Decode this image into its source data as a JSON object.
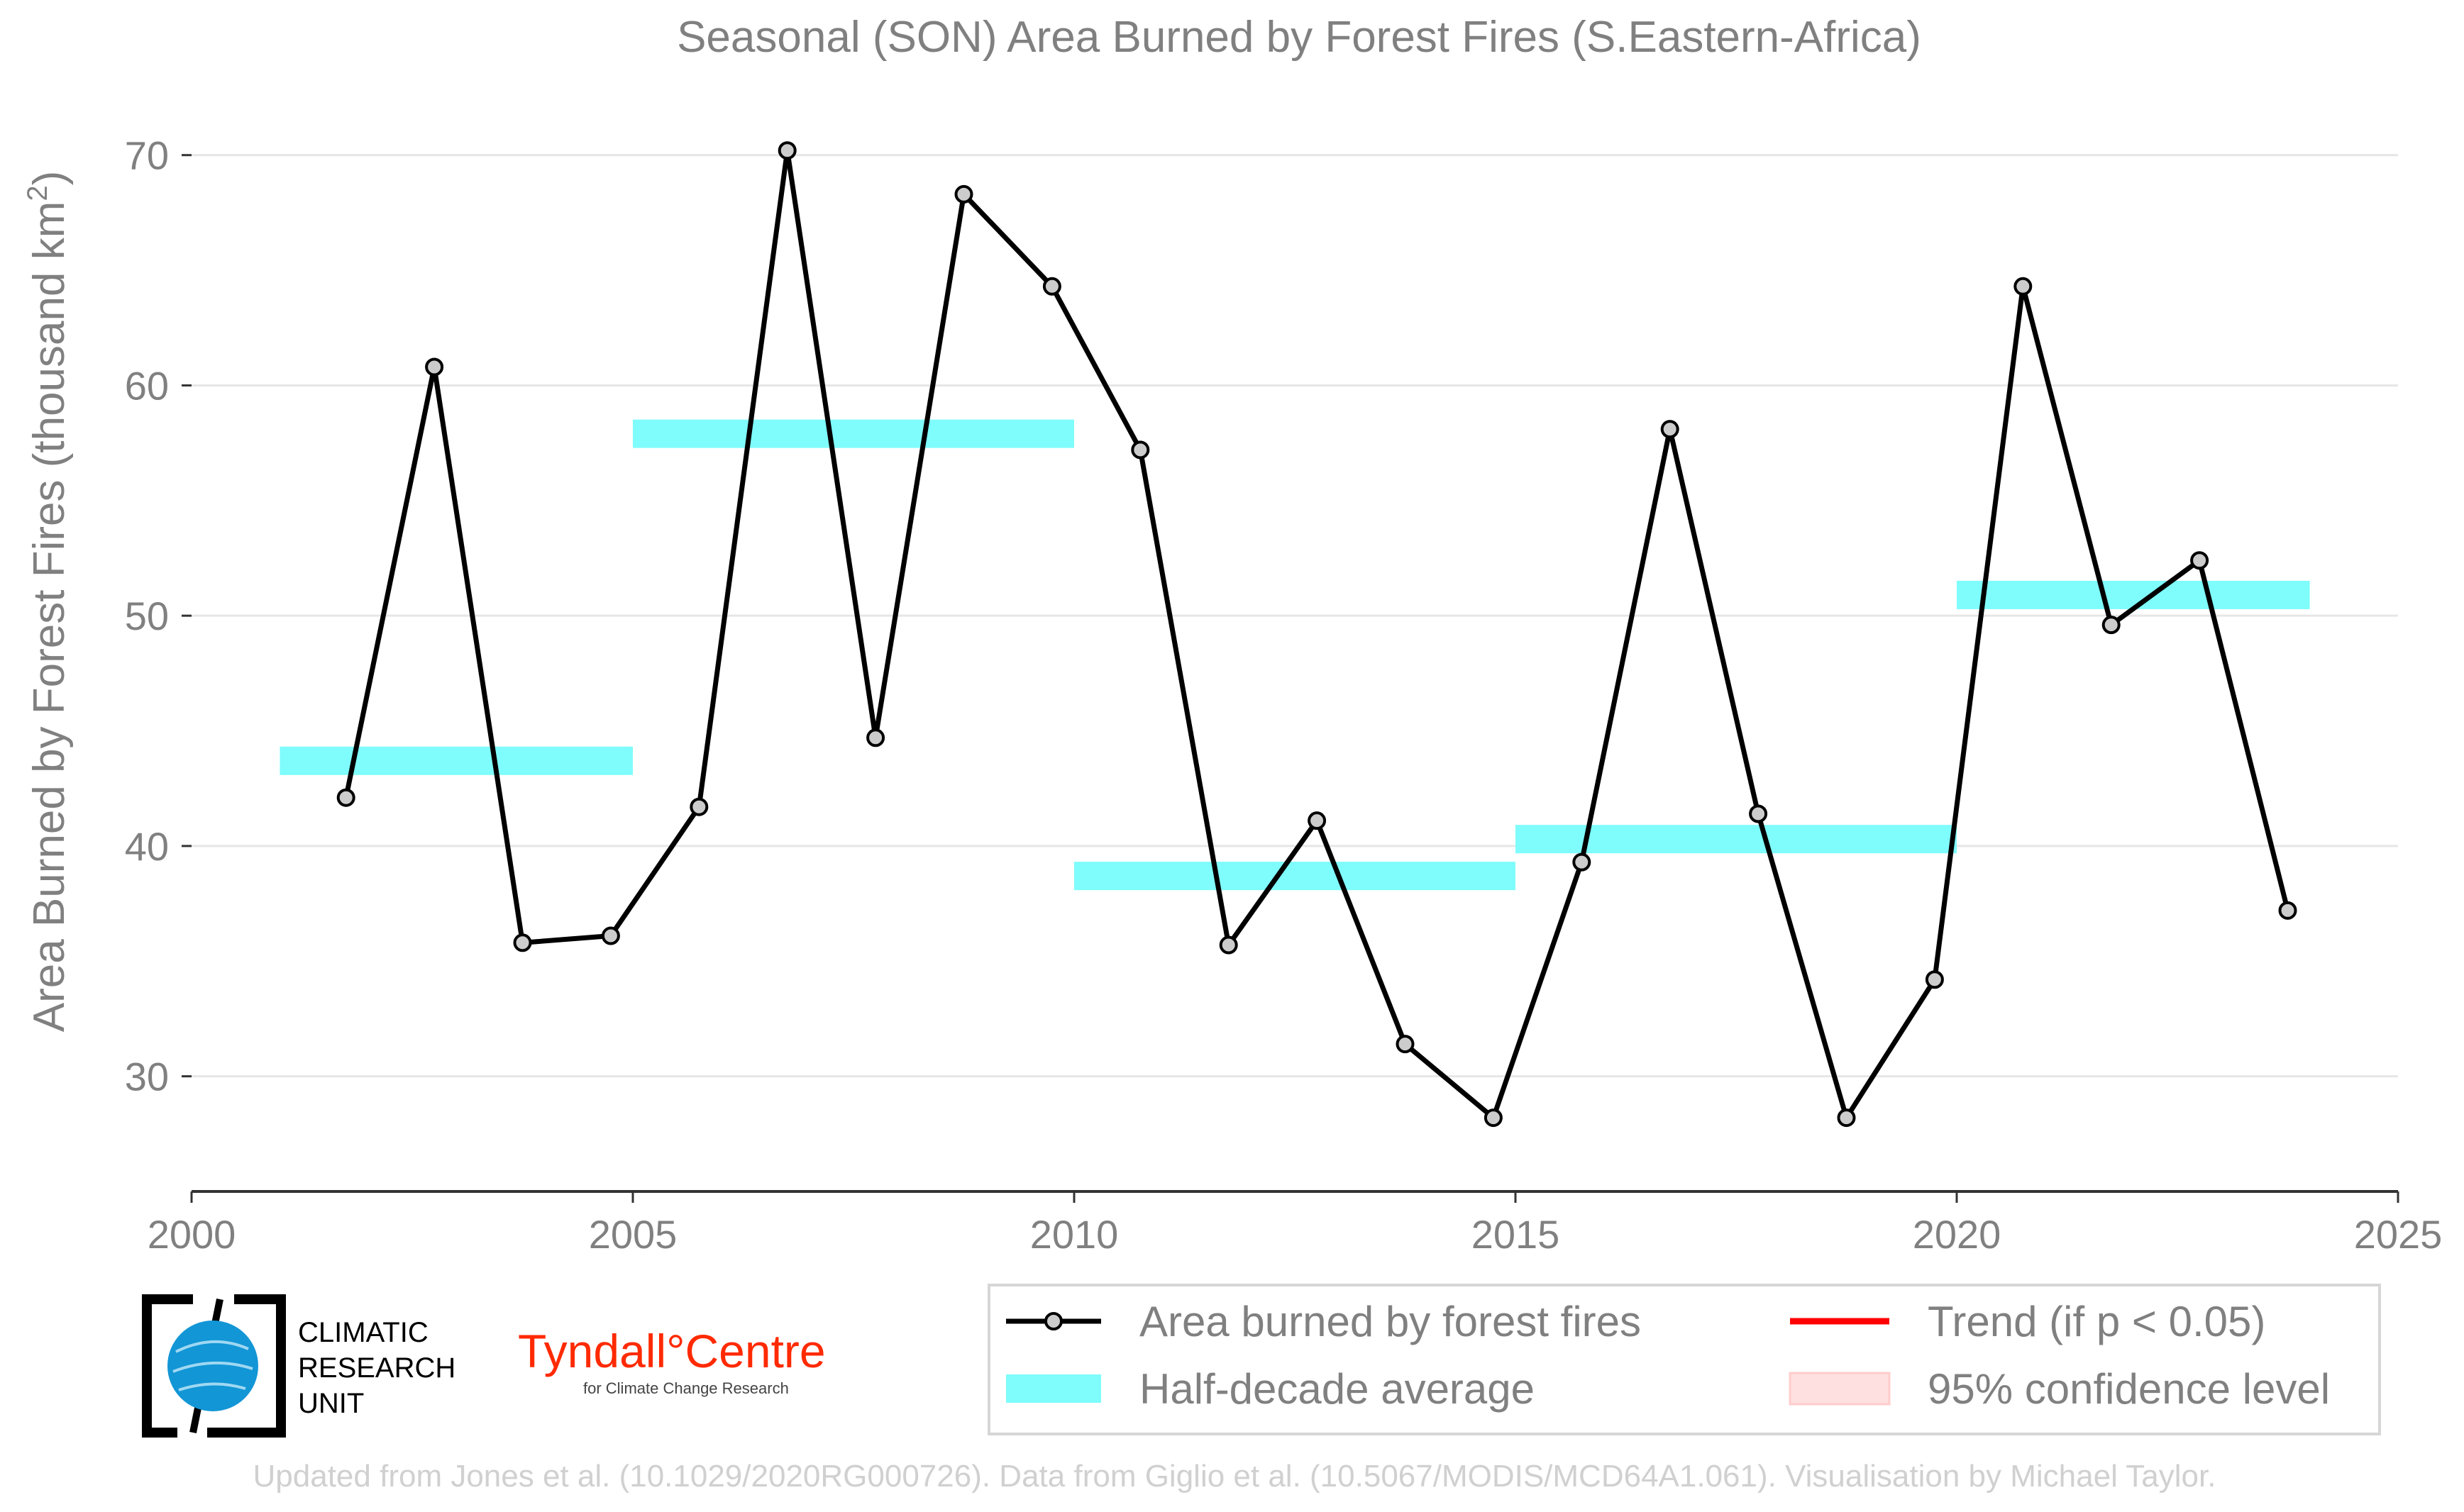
{
  "chart_data": {
    "type": "line",
    "title": "Seasonal (SON) Area Burned by Forest Fires (S.Eastern-Africa)",
    "ylabel": "Area Burned by Forest Fires (thousand km²)",
    "xlabel": "",
    "xlim": [
      2000,
      2025
    ],
    "ylim": [
      25,
      71.5
    ],
    "x_ticks": [
      2000,
      2005,
      2010,
      2015,
      2020,
      2025
    ],
    "y_ticks": [
      30,
      40,
      50,
      60,
      70
    ],
    "grid": "horizontal",
    "series": [
      {
        "name": "Area burned by forest fires",
        "color": "#000000",
        "x": [
          2001.75,
          2002.75,
          2003.75,
          2004.75,
          2005.75,
          2006.75,
          2007.75,
          2008.75,
          2009.75,
          2010.75,
          2011.75,
          2012.75,
          2013.75,
          2014.75,
          2015.75,
          2016.75,
          2017.75,
          2018.75,
          2019.75,
          2020.75,
          2021.75,
          2022.75,
          2023.75
        ],
        "values": [
          42.1,
          60.8,
          35.8,
          36.1,
          41.7,
          70.2,
          44.7,
          68.3,
          64.3,
          57.2,
          35.7,
          41.1,
          31.4,
          28.2,
          39.3,
          58.1,
          41.4,
          28.2,
          34.2,
          64.3,
          49.6,
          52.4,
          37.2
        ]
      }
    ],
    "half_decade_average": {
      "name": "Half-decade average",
      "color": "#7ffcfc",
      "bands": [
        {
          "x_start": 2001,
          "x_end": 2005,
          "value": 43.7
        },
        {
          "x_start": 2005,
          "x_end": 2010,
          "value": 57.9
        },
        {
          "x_start": 2010,
          "x_end": 2015,
          "value": 38.7
        },
        {
          "x_start": 2015,
          "x_end": 2020,
          "value": 40.3
        },
        {
          "x_start": 2020,
          "x_end": 2024,
          "value": 50.9
        }
      ]
    },
    "legend": {
      "placement": "bottom-right",
      "entries": [
        {
          "label": "Area burned by forest fires",
          "symbol": "line-marker",
          "color": "#000000"
        },
        {
          "label": "Trend (if p < 0.05)",
          "symbol": "line",
          "color": "#ff0000"
        },
        {
          "label": "Half-decade average",
          "symbol": "band",
          "color": "#7ffcfc"
        },
        {
          "label": "95% confidence level",
          "symbol": "patch",
          "color": "#ffe0e0"
        }
      ]
    }
  },
  "logos": {
    "cru_line1": "CLIMATIC",
    "cru_line2": "RESEARCH",
    "cru_line3": "UNIT",
    "tyndall_name": "Tyndall°Centre",
    "tyndall_sub": "for Climate Change Research"
  },
  "footer": "Updated from Jones et al. (10.1029/2020RG000726). Data from Giglio et al. (10.5067/MODIS/MCD64A1.061). Visualisation by Michael Taylor."
}
